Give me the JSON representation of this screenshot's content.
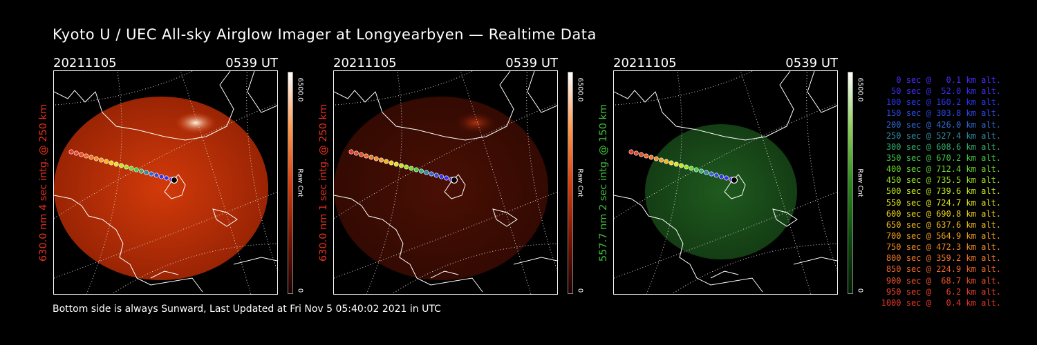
{
  "title": "Kyoto U / UEC All-sky Airglow Imager at Longyearbyen — Realtime Data",
  "panels": [
    {
      "date": "20211105",
      "time": "0539 UT",
      "ylabel": "630.0 nm 4 sec intg. @ 250 km",
      "label_color": "#e8301a",
      "cbar_max": "6500.0",
      "cbar_min": "0",
      "cbar_unit": "Raw Cnt",
      "image_tint": "red-bright"
    },
    {
      "date": "20211105",
      "time": "0539 UT",
      "ylabel": "630.0 nm 1 sec intg. @ 250 km",
      "label_color": "#e8301a",
      "cbar_max": "6500.0",
      "cbar_min": "0",
      "cbar_unit": "Raw Cnt",
      "image_tint": "red-dim"
    },
    {
      "date": "20211105",
      "time": "0539 UT",
      "ylabel": "557.7 nm 2 sec intg. @ 150 km",
      "label_color": "#3fc23a",
      "cbar_max": "6500.0",
      "cbar_min": "0",
      "cbar_unit": "Raw Cnt",
      "image_tint": "green"
    }
  ],
  "legend": [
    {
      "text": "0 sec @   0.1 km alt.",
      "color": "#4d2bff"
    },
    {
      "text": "50 sec @  52.0 km alt.",
      "color": "#3b2ff5"
    },
    {
      "text": "100 sec @ 160.2 km alt.",
      "color": "#2a36f0"
    },
    {
      "text": "150 sec @ 303.8 km alt.",
      "color": "#2a4ae6"
    },
    {
      "text": "200 sec @ 426.0 km alt.",
      "color": "#2f6ad3"
    },
    {
      "text": "250 sec @ 527.4 km alt.",
      "color": "#2e8ca6"
    },
    {
      "text": "300 sec @ 608.6 km alt.",
      "color": "#33b070"
    },
    {
      "text": "350 sec @ 670.2 km alt.",
      "color": "#3fcc44"
    },
    {
      "text": "400 sec @ 712.4 km alt.",
      "color": "#6bdc2c"
    },
    {
      "text": "450 sec @ 735.5 km alt.",
      "color": "#9be421"
    },
    {
      "text": "500 sec @ 739.6 km alt.",
      "color": "#c4e81c"
    },
    {
      "text": "550 sec @ 724.7 km alt.",
      "color": "#e2e51a"
    },
    {
      "text": "600 sec @ 690.8 km alt.",
      "color": "#f0d21a"
    },
    {
      "text": "650 sec @ 637.6 km alt.",
      "color": "#f5b81e"
    },
    {
      "text": "700 sec @ 564.9 km alt.",
      "color": "#f5a020"
    },
    {
      "text": "750 sec @ 472.3 km alt.",
      "color": "#f58c24"
    },
    {
      "text": "800 sec @ 359.2 km alt.",
      "color": "#f27826"
    },
    {
      "text": "850 sec @ 224.9 km alt.",
      "color": "#ee6428"
    },
    {
      "text": "900 sec @  68.7 km alt.",
      "color": "#ec5228"
    },
    {
      "text": "950 sec @   6.2 km alt.",
      "color": "#ea4228"
    },
    {
      "text": "1000 sec @   0.4 km alt.",
      "color": "#e83428"
    }
  ],
  "footer": "Bottom side is always Sunward, Last Updated at Fri Nov  5 05:40:02 2021 in UTC"
}
